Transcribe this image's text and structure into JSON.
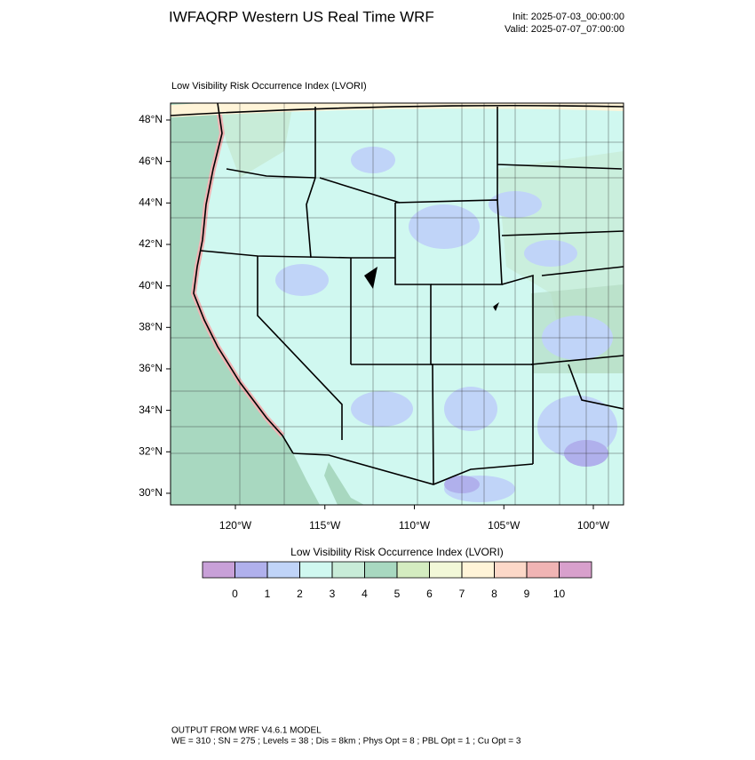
{
  "header": {
    "title": "IWFAQRP Western US Real Time WRF",
    "init": "Init: 2025-07-03_00:00:00",
    "valid": "Valid: 2025-07-07_07:00:00"
  },
  "map": {
    "subtitle": "Low Visibility Risk Occurrence Index   (LVORI)",
    "lat_ticks": [
      {
        "value": 48,
        "label": "48°N"
      },
      {
        "value": 46,
        "label": "46°N"
      },
      {
        "value": 44,
        "label": "44°N"
      },
      {
        "value": 42,
        "label": "42°N"
      },
      {
        "value": 40,
        "label": "40°N"
      },
      {
        "value": 38,
        "label": "38°N"
      },
      {
        "value": 36,
        "label": "36°N"
      },
      {
        "value": 34,
        "label": "34°N"
      },
      {
        "value": 32,
        "label": "32°N"
      },
      {
        "value": 30,
        "label": "30°N"
      }
    ],
    "lon_ticks": [
      {
        "value": -120,
        "label": "120°W"
      },
      {
        "value": -115,
        "label": "115°W"
      },
      {
        "value": -110,
        "label": "110°W"
      },
      {
        "value": -105,
        "label": "105°W"
      },
      {
        "value": -100,
        "label": "100°W"
      }
    ]
  },
  "colorbar": {
    "title": "Low Visibility Risk Occurrence Index  (LVORI)",
    "colors": [
      "#c8a0d8",
      "#b0b0ec",
      "#c0d4f8",
      "#d0f8f0",
      "#c8ecd8",
      "#a8d8c0",
      "#d4ecc0",
      "#f2f8d8",
      "#fff4d8",
      "#fcd8c8",
      "#f0b4b4",
      "#d8a0cc"
    ],
    "ticks": [
      0,
      1,
      2,
      3,
      4,
      5,
      6,
      7,
      8,
      9,
      10
    ]
  },
  "footer": {
    "line1": "OUTPUT FROM WRF V4.6.1 MODEL",
    "line2": "WE = 310 ; SN = 275 ; Levels = 38 ; Dis = 8km ; Phys Opt = 8 ; PBL Opt = 1 ; Cu Opt = 3"
  }
}
